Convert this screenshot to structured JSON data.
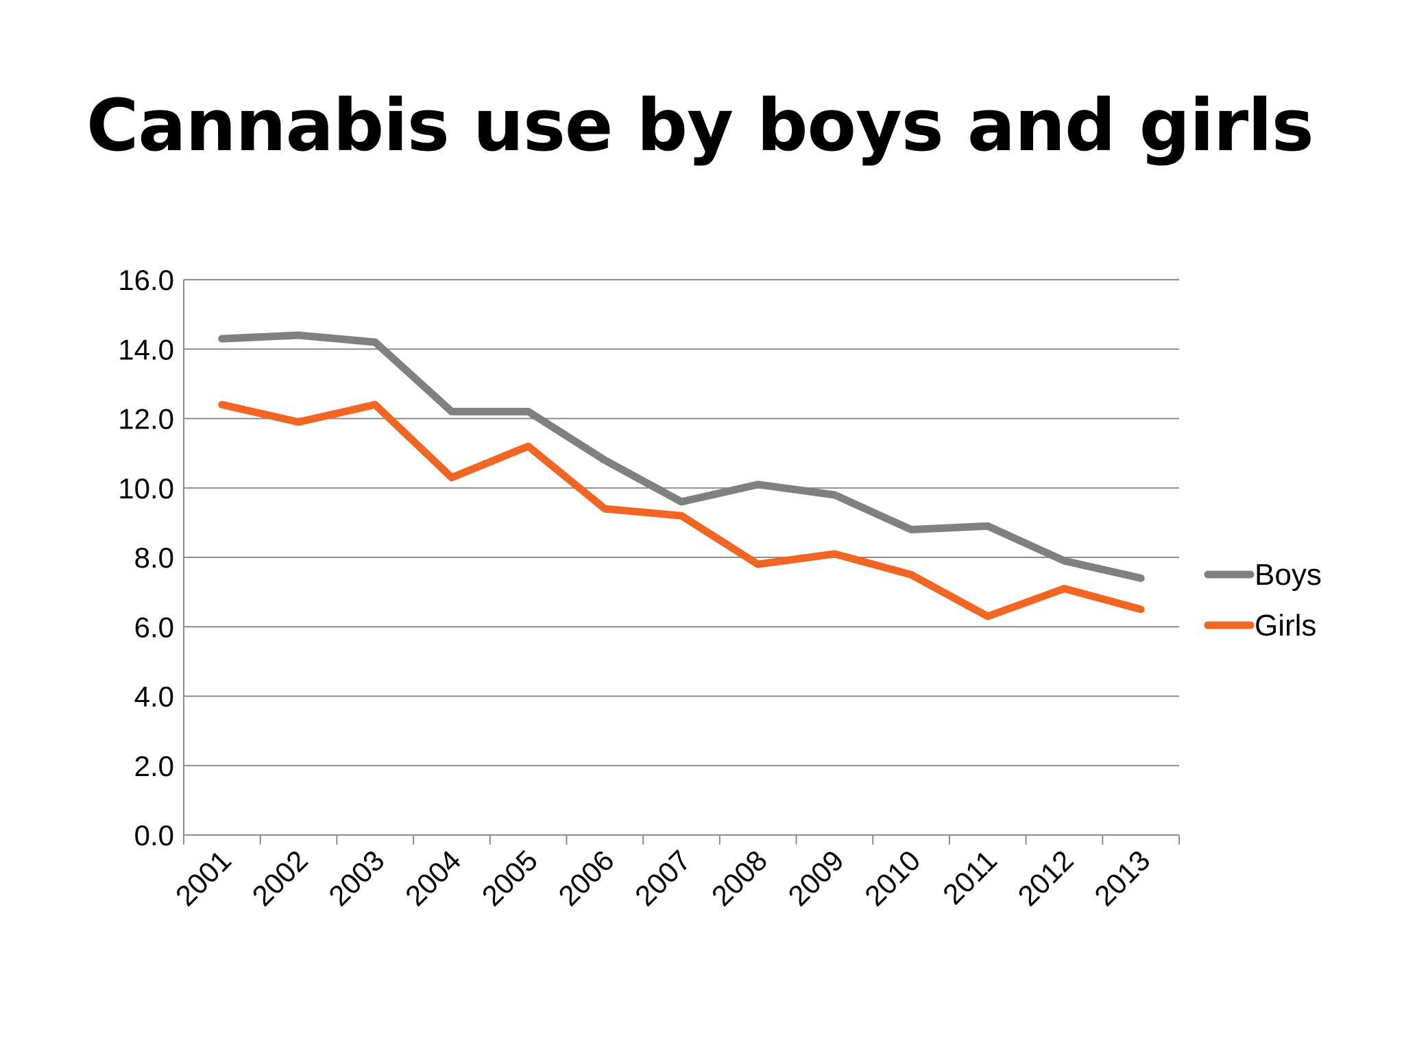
{
  "title": "Cannabis use by boys and girls",
  "chart_data": {
    "type": "line",
    "title": "Cannabis use by boys and girls",
    "categories": [
      "2001",
      "2002",
      "2003",
      "2004",
      "2005",
      "2006",
      "2007",
      "2008",
      "2009",
      "2010",
      "2011",
      "2012",
      "2013"
    ],
    "series": [
      {
        "name": "Boys",
        "color": "#808080",
        "values": [
          14.3,
          14.4,
          14.2,
          12.2,
          12.2,
          10.8,
          9.6,
          10.1,
          9.8,
          8.8,
          8.9,
          7.9,
          7.4
        ]
      },
      {
        "name": "Girls",
        "color": "#f26522",
        "values": [
          12.4,
          11.9,
          12.4,
          10.3,
          11.2,
          9.4,
          9.2,
          7.8,
          8.1,
          7.5,
          6.3,
          7.1,
          6.5
        ]
      }
    ],
    "yticks": [
      "0.0",
      "2.0",
      "4.0",
      "6.0",
      "8.0",
      "10.0",
      "12.0",
      "14.0",
      "16.0"
    ],
    "ylim": [
      0,
      16
    ],
    "grid": true,
    "legend_position": "right",
    "xlabel": "",
    "ylabel": ""
  }
}
